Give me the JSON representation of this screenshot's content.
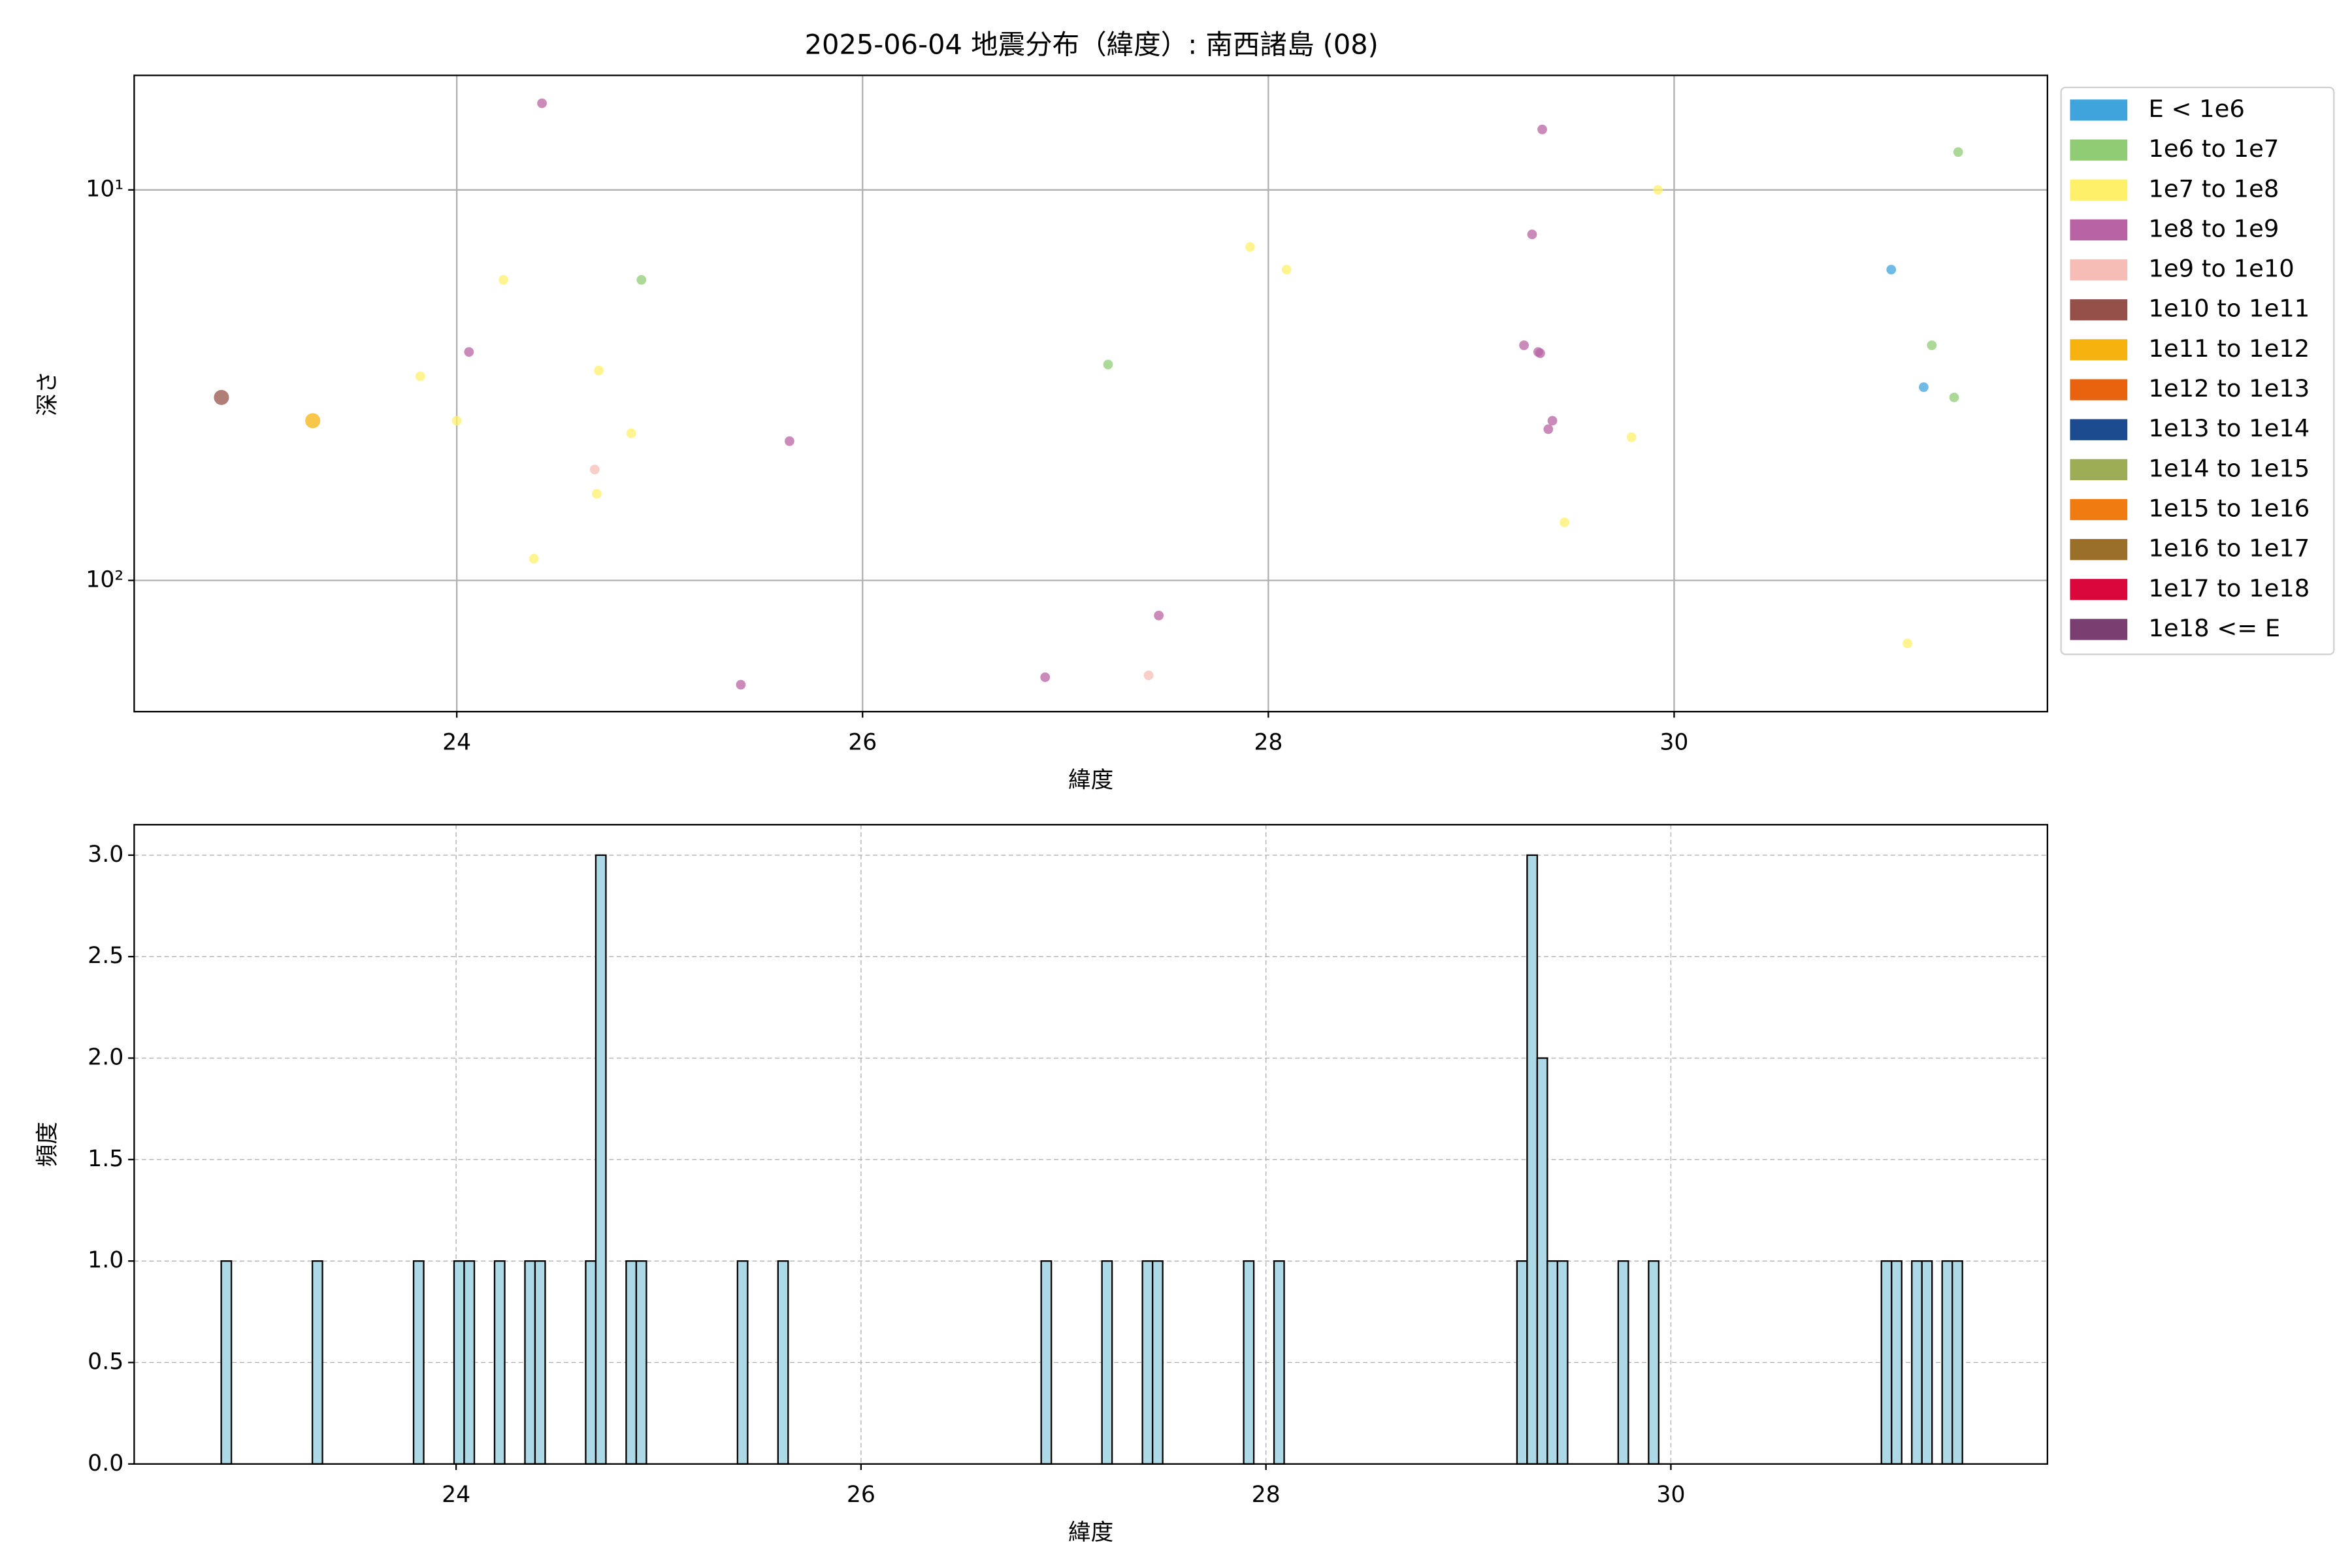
{
  "chart_data": [
    {
      "type": "scatter",
      "title": "2025-06-04 地震分布（緯度）: 南西諸島 (08)",
      "xlabel": "緯度",
      "ylabel": "深さ",
      "xlim": [
        22.41,
        31.84
      ],
      "ylim": [
        5.09,
        216.8
      ],
      "ylog": true,
      "yinvert": true,
      "xticks": [
        24,
        26,
        28,
        30
      ],
      "yticks": [
        {
          "value": 10,
          "label": "10¹"
        },
        {
          "value": 100,
          "label": "10²"
        }
      ],
      "grid": true,
      "legend": "outside upper right",
      "series": [
        {
          "name": "E < 1e6",
          "color": "#3fa4dc",
          "x": [
            31.07,
            31.23
          ],
          "values": [
            16,
            32
          ]
        },
        {
          "name": "1e6 to 1e7",
          "color": "#90cc74",
          "x": [
            24.91,
            27.21,
            31.4,
            31.27,
            31.38
          ],
          "values": [
            17,
            28,
            8,
            25,
            34
          ]
        },
        {
          "name": "1e7 to 1e8",
          "color": "#fff06a",
          "x": [
            24.23,
            23.82,
            24.0,
            24.7,
            24.86,
            24.69,
            24.38,
            27.91,
            28.09,
            29.92,
            29.79,
            29.46,
            31.15
          ],
          "values": [
            17,
            30,
            39,
            29,
            42,
            60,
            88,
            14,
            16,
            10,
            43,
            71,
            145
          ]
        },
        {
          "name": "1e8 to 1e9",
          "color": "#b863a3",
          "x": [
            24.42,
            24.06,
            25.64,
            25.4,
            26.9,
            27.46,
            29.35,
            29.3,
            29.26,
            29.33,
            29.34,
            29.4,
            29.38
          ],
          "values": [
            6,
            26,
            44,
            185,
            177,
            123,
            7,
            13,
            25,
            26,
            26.2,
            39,
            41
          ]
        },
        {
          "name": "1e9 to 1e10",
          "color": "#f5bdb6",
          "x": [
            24.68,
            27.41
          ],
          "values": [
            52,
            175
          ]
        },
        {
          "name": "1e10 to 1e11",
          "color": "#955149",
          "x": [
            22.84
          ],
          "values": [
            34
          ]
        },
        {
          "name": "1e11 to 1e12",
          "color": "#f6b30f",
          "x": [
            23.29
          ],
          "values": [
            39
          ]
        },
        {
          "name": "1e12 to 1e13",
          "color": "#e9630e",
          "x": [],
          "values": []
        },
        {
          "name": "1e13 to 1e14",
          "color": "#1c4b8f",
          "x": [],
          "values": []
        },
        {
          "name": "1e14 to 1e15",
          "color": "#9dad55",
          "x": [],
          "values": []
        },
        {
          "name": "1e15 to 1e16",
          "color": "#f07b10",
          "x": [],
          "values": []
        },
        {
          "name": "1e16 to 1e17",
          "color": "#9a6f2a",
          "x": [],
          "values": []
        },
        {
          "name": "1e17 to 1e18",
          "color": "#d9073b",
          "x": [],
          "values": []
        },
        {
          "name": "1e18 <= E",
          "color": "#7a3f70",
          "x": [],
          "values": []
        }
      ]
    },
    {
      "type": "histogram",
      "xlabel": "緯度",
      "ylabel": "頻度",
      "xlim": [
        22.41,
        31.86
      ],
      "ylim": [
        0,
        3.15
      ],
      "xticks": [
        24,
        26,
        28,
        30
      ],
      "yticks": [
        {
          "value": 0,
          "label": "0.0"
        },
        0.5,
        {
          "value": 1,
          "label": "1.0"
        },
        1.5,
        {
          "value": 2,
          "label": "2.0"
        },
        2.5,
        {
          "value": 3,
          "label": "3.0"
        }
      ],
      "grid": true,
      "grid_style": "dashed",
      "color": "#add8e6",
      "edgecolor": "#000000",
      "bins": [
        22.84,
        22.89,
        23.29,
        23.34,
        23.79,
        23.84,
        23.99,
        24.04,
        24.09,
        24.19,
        24.24,
        24.34,
        24.39,
        24.44,
        24.64,
        24.69,
        24.74,
        24.84,
        24.89,
        24.94,
        25.39,
        25.44,
        25.59,
        25.64,
        26.89,
        26.94,
        27.19,
        27.24,
        27.39,
        27.44,
        27.49,
        27.89,
        27.94,
        28.04,
        28.09,
        29.24,
        29.29,
        29.34,
        29.39,
        29.44,
        29.49,
        29.74,
        29.79,
        29.89,
        29.94,
        31.04,
        31.09,
        31.14,
        31.19,
        31.24,
        31.29,
        31.34,
        31.39,
        31.44
      ],
      "counts": [
        1,
        0,
        1,
        0,
        1,
        0,
        1,
        1,
        0,
        1,
        0,
        1,
        1,
        0,
        1,
        3,
        0,
        1,
        1,
        0,
        1,
        0,
        1,
        0,
        1,
        0,
        1,
        0,
        1,
        1,
        0,
        1,
        0,
        1,
        0,
        1,
        3,
        2,
        1,
        1,
        0,
        1,
        0,
        1,
        0,
        1,
        1,
        0,
        1,
        1,
        0,
        1,
        1
      ]
    }
  ]
}
